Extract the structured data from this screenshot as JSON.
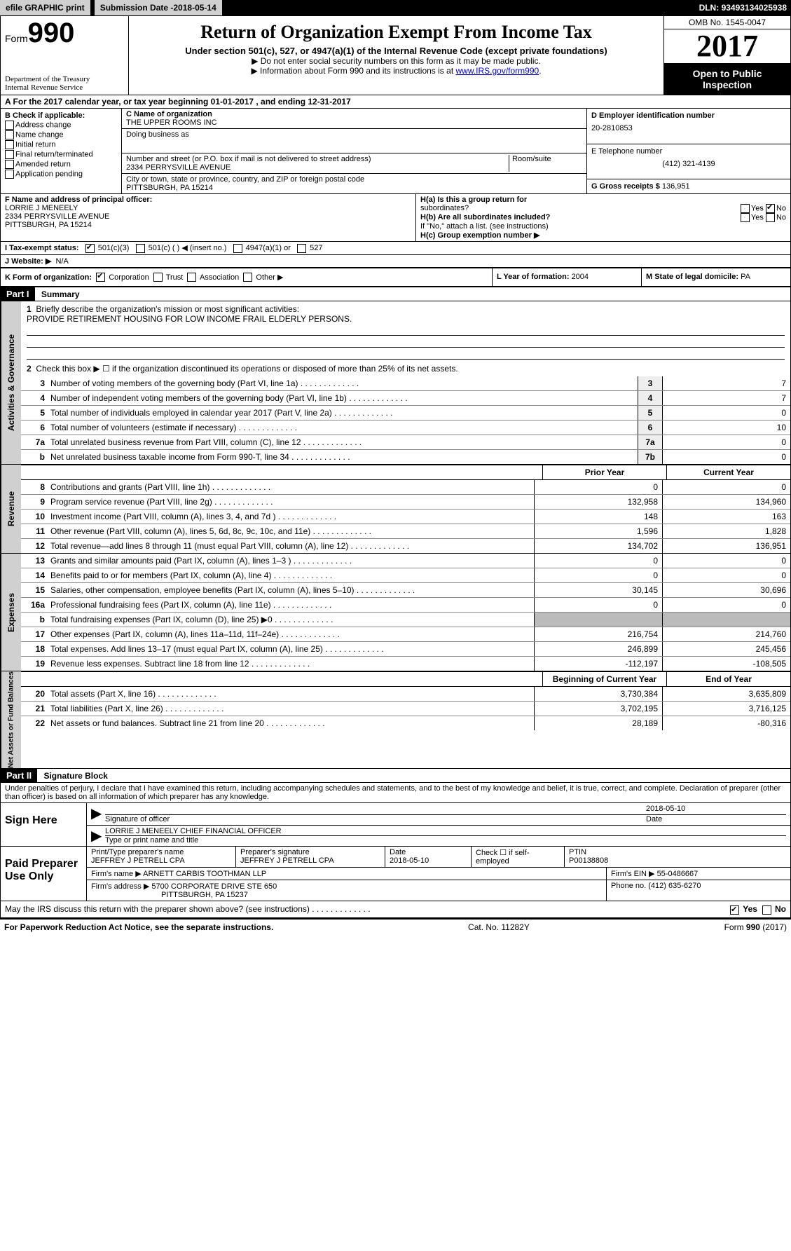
{
  "top": {
    "efile": "efile GRAPHIC print",
    "subdate_label": "Submission Date - ",
    "subdate": "2018-05-14",
    "dln_label": "DLN: ",
    "dln": "93493134025938"
  },
  "header": {
    "form_small": "Form",
    "form_big": "990",
    "dept1": "Department of the Treasury",
    "dept2": "Internal Revenue Service",
    "title": "Return of Organization Exempt From Income Tax",
    "sub": "Under section 501(c), 527, or 4947(a)(1) of the Internal Revenue Code (except private foundations)",
    "note1": "▶ Do not enter social security numbers on this form as it may be made public.",
    "note2_a": "▶ Information about Form 990 and its instructions is at ",
    "note2_link": "www.IRS.gov/form990",
    "omb": "OMB No. 1545-0047",
    "year": "2017",
    "open1": "Open to Public",
    "open2": "Inspection"
  },
  "A": {
    "text": "A  For the 2017 calendar year, or tax year beginning 01-01-2017   , and ending 12-31-2017"
  },
  "B": {
    "label": "B Check if applicable:",
    "items": [
      "Address change",
      "Name change",
      "Initial return",
      "Final return/terminated",
      "Amended return",
      "Application pending"
    ]
  },
  "C": {
    "name_label": "C Name of organization",
    "name": "THE UPPER ROOMS INC",
    "dba_label": "Doing business as",
    "street_label": "Number and street (or P.O. box if mail is not delivered to street address)",
    "room_label": "Room/suite",
    "street": "2334 PERRYSVILLE AVENUE",
    "city_label": "City or town, state or province, country, and ZIP or foreign postal code",
    "city": "PITTSBURGH, PA  15214"
  },
  "D": {
    "label": "D Employer identification number",
    "val": "20-2810853"
  },
  "E": {
    "label": "E Telephone number",
    "val": "(412) 321-4139"
  },
  "G": {
    "label": "G Gross receipts $ ",
    "val": "136,951"
  },
  "F": {
    "label": "F  Name and address of principal officer:",
    "l1": "LORRIE J MENEELY",
    "l2": "2334 PERRYSVILLE AVENUE",
    "l3": "PITTSBURGH, PA  15214"
  },
  "H": {
    "a": "H(a)  Is this a group return for",
    "a2": "subordinates?",
    "b": "H(b)  Are all subordinates included?",
    "note": "If \"No,\" attach a list. (see instructions)",
    "c": "H(c)  Group exemption number ▶"
  },
  "I": {
    "label": "I  Tax-exempt status:",
    "o1": "501(c)(3)",
    "o2": "501(c) (  ) ◀ (insert no.)",
    "o3": "4947(a)(1) or",
    "o4": "527"
  },
  "J": {
    "label": "J  Website: ▶",
    "val": "N/A"
  },
  "K": {
    "label": "K Form of organization:",
    "o1": "Corporation",
    "o2": "Trust",
    "o3": "Association",
    "o4": "Other ▶"
  },
  "L": {
    "label": "L Year of formation: ",
    "val": "2004"
  },
  "M": {
    "label": "M State of legal domicile: ",
    "val": "PA"
  },
  "part1": {
    "hdr": "Part I",
    "title": "Summary",
    "mission_label": "Briefly describe the organization's mission or most significant activities:",
    "mission": "PROVIDE RETIREMENT HOUSING FOR LOW INCOME FRAIL ELDERLY PERSONS.",
    "line2": "Check this box ▶ ☐  if the organization discontinued its operations or disposed of more than 25% of its net assets.",
    "gov_hdr": "Activities & Governance",
    "rev_hdr": "Revenue",
    "exp_hdr": "Expenses",
    "net_hdr": "Net Assets or Fund Balances",
    "prior": "Prior Year",
    "current": "Current Year",
    "begin": "Beginning of Current Year",
    "end": "End of Year",
    "rows_gov": [
      {
        "n": "3",
        "d": "Number of voting members of the governing body (Part VI, line 1a)",
        "c": "3",
        "v": "7"
      },
      {
        "n": "4",
        "d": "Number of independent voting members of the governing body (Part VI, line 1b)",
        "c": "4",
        "v": "7"
      },
      {
        "n": "5",
        "d": "Total number of individuals employed in calendar year 2017 (Part V, line 2a)",
        "c": "5",
        "v": "0"
      },
      {
        "n": "6",
        "d": "Total number of volunteers (estimate if necessary)",
        "c": "6",
        "v": "10"
      },
      {
        "n": "7a",
        "d": "Total unrelated business revenue from Part VIII, column (C), line 12",
        "c": "7a",
        "v": "0"
      },
      {
        "n": "b",
        "d": "Net unrelated business taxable income from Form 990-T, line 34",
        "c": "7b",
        "v": "0"
      }
    ],
    "rows_rev": [
      {
        "n": "8",
        "d": "Contributions and grants (Part VIII, line 1h)",
        "p": "0",
        "c": "0"
      },
      {
        "n": "9",
        "d": "Program service revenue (Part VIII, line 2g)",
        "p": "132,958",
        "c": "134,960"
      },
      {
        "n": "10",
        "d": "Investment income (Part VIII, column (A), lines 3, 4, and 7d )",
        "p": "148",
        "c": "163"
      },
      {
        "n": "11",
        "d": "Other revenue (Part VIII, column (A), lines 5, 6d, 8c, 9c, 10c, and 11e)",
        "p": "1,596",
        "c": "1,828"
      },
      {
        "n": "12",
        "d": "Total revenue—add lines 8 through 11 (must equal Part VIII, column (A), line 12)",
        "p": "134,702",
        "c": "136,951"
      }
    ],
    "rows_exp": [
      {
        "n": "13",
        "d": "Grants and similar amounts paid (Part IX, column (A), lines 1–3 )",
        "p": "0",
        "c": "0"
      },
      {
        "n": "14",
        "d": "Benefits paid to or for members (Part IX, column (A), line 4)",
        "p": "0",
        "c": "0"
      },
      {
        "n": "15",
        "d": "Salaries, other compensation, employee benefits (Part IX, column (A), lines 5–10)",
        "p": "30,145",
        "c": "30,696"
      },
      {
        "n": "16a",
        "d": "Professional fundraising fees (Part IX, column (A), line 11e)",
        "p": "0",
        "c": "0"
      },
      {
        "n": "b",
        "d": "Total fundraising expenses (Part IX, column (D), line 25) ▶0",
        "p": "",
        "c": "",
        "grey": true
      },
      {
        "n": "17",
        "d": "Other expenses (Part IX, column (A), lines 11a–11d, 11f–24e)",
        "p": "216,754",
        "c": "214,760"
      },
      {
        "n": "18",
        "d": "Total expenses. Add lines 13–17 (must equal Part IX, column (A), line 25)",
        "p": "246,899",
        "c": "245,456"
      },
      {
        "n": "19",
        "d": "Revenue less expenses. Subtract line 18 from line 12",
        "p": "-112,197",
        "c": "-108,505"
      }
    ],
    "rows_net": [
      {
        "n": "20",
        "d": "Total assets (Part X, line 16)",
        "p": "3,730,384",
        "c": "3,635,809"
      },
      {
        "n": "21",
        "d": "Total liabilities (Part X, line 26)",
        "p": "3,702,195",
        "c": "3,716,125"
      },
      {
        "n": "22",
        "d": "Net assets or fund balances. Subtract line 21 from line 20",
        "p": "28,189",
        "c": "-80,316"
      }
    ]
  },
  "part2": {
    "hdr": "Part II",
    "title": "Signature Block",
    "decl": "Under penalties of perjury, I declare that I have examined this return, including accompanying schedules and statements, and to the best of my knowledge and belief, it is true, correct, and complete. Declaration of preparer (other than officer) is based on all information of which preparer has any knowledge.",
    "sign_here": "Sign Here",
    "sig_officer": "Signature of officer",
    "sig_date": "2018-05-10",
    "date_label": "Date",
    "officer_name": "LORRIE J MENEELY CHIEF FINANCIAL OFFICER",
    "type_name": "Type or print name and title",
    "paid": "Paid Preparer Use Only",
    "prep_name_label": "Print/Type preparer's name",
    "prep_name": "JEFFREY J PETRELL CPA",
    "prep_sig_label": "Preparer's signature",
    "prep_sig": "JEFFREY J PETRELL CPA",
    "prep_date_label": "Date",
    "prep_date": "2018-05-10",
    "check_label": "Check ☐ if self-employed",
    "ptin_label": "PTIN",
    "ptin": "P00138808",
    "firm_name_label": "Firm's name    ▶ ",
    "firm_name": "ARNETT CARBIS TOOTHMAN LLP",
    "firm_ein_label": "Firm's EIN ▶ ",
    "firm_ein": "55-0486667",
    "firm_addr_label": "Firm's address ▶ ",
    "firm_addr1": "5700 CORPORATE DRIVE STE 650",
    "firm_addr2": "PITTSBURGH, PA  15237",
    "phone_label": "Phone no. ",
    "phone": "(412) 635-6270",
    "discuss": "May the IRS discuss this return with the preparer shown above? (see instructions)",
    "yes": "Yes",
    "no": "No"
  },
  "footer": {
    "l": "For Paperwork Reduction Act Notice, see the separate instructions.",
    "c": "Cat. No. 11282Y",
    "r": "Form 990 (2017)"
  }
}
